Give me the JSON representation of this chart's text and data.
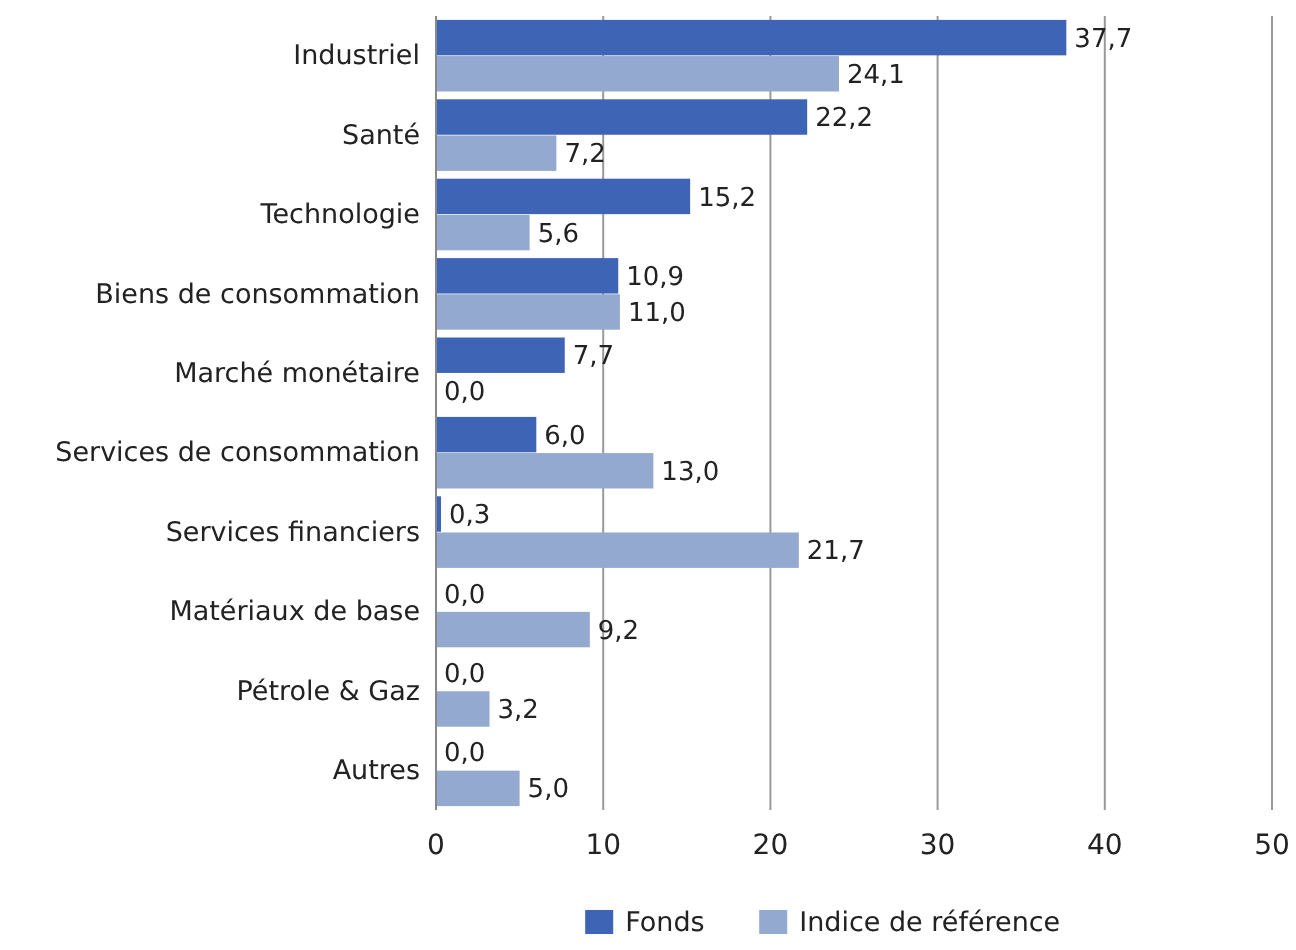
{
  "chart_data": {
    "type": "bar",
    "orientation": "horizontal",
    "categories": [
      "Industriel",
      "Santé",
      "Technologie",
      "Biens de consommation",
      "Marché monétaire",
      "Services de consommation",
      "Services financiers",
      "Matériaux de base",
      "Pétrole & Gaz",
      "Autres"
    ],
    "series": [
      {
        "name": "Fonds",
        "color": "#3e64b5",
        "values": [
          37.7,
          22.2,
          15.2,
          10.9,
          7.7,
          6.0,
          0.3,
          0.0,
          0.0,
          0.0
        ],
        "value_labels": [
          "37,7",
          "22,2",
          "15,2",
          "10,9",
          "7,7",
          "6,0",
          "0,3",
          "0,0",
          "0,0",
          "0,0"
        ]
      },
      {
        "name": "Indice de référence",
        "color": "#94a9d0",
        "values": [
          24.1,
          7.2,
          5.6,
          11.0,
          0.0,
          13.0,
          21.7,
          9.2,
          3.2,
          5.0
        ],
        "value_labels": [
          "24,1",
          "7,2",
          "5,6",
          "11,0",
          "0,0",
          "13,0",
          "21,7",
          "9,2",
          "3,2",
          "5,0"
        ]
      }
    ],
    "xlim": [
      0,
      50
    ],
    "xticks": [
      0,
      10,
      20,
      30,
      40,
      50
    ],
    "grid": "x",
    "legend": "bottom"
  }
}
